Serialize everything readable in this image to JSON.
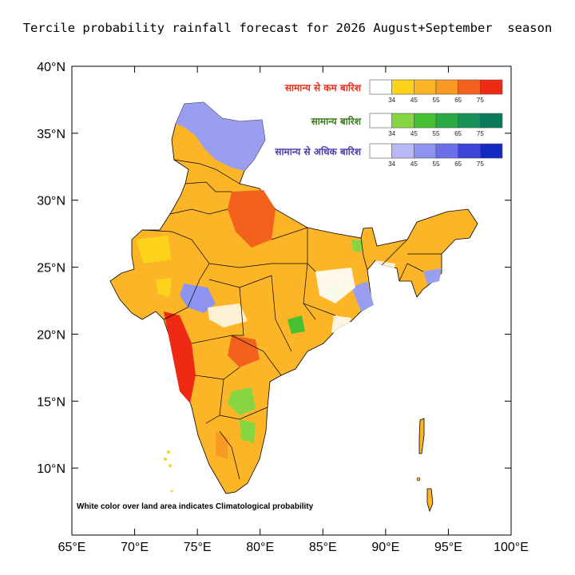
{
  "title": "Tercile probability rainfall forecast for 2026 August+September  season",
  "footnote": "White color over land area indicates Climatological probability",
  "map": {
    "lon_range": [
      65,
      100
    ],
    "lat_range": [
      5,
      40
    ],
    "x_ticks": [
      "65°E",
      "70°E",
      "75°E",
      "80°E",
      "85°E",
      "90°E",
      "95°E",
      "100°E"
    ],
    "y_ticks": [
      "40°N",
      "35°N",
      "30°N",
      "25°N",
      "20°N",
      "15°N",
      "10°N"
    ]
  },
  "legend": [
    {
      "title": "सामान्य से कम बारिश",
      "title_color": "#e8311f",
      "colors": [
        "#ffffff",
        "#fdd21a",
        "#fbb527",
        "#f99a22",
        "#f3621c",
        "#ee2a15"
      ],
      "ticks": [
        "34",
        "45",
        "55",
        "65",
        "75"
      ]
    },
    {
      "title": "सामान्य बारिश",
      "title_color": "#3d7a1e",
      "colors": [
        "#ffffff",
        "#86d642",
        "#46c031",
        "#2aa843",
        "#18905a",
        "#0a7a5a"
      ],
      "ticks": [
        "34",
        "45",
        "55",
        "65",
        "75"
      ]
    },
    {
      "title": "सामान्य से अधिक बारिश",
      "title_color": "#4b3fb0",
      "colors": [
        "#ffffff",
        "#b7b8f5",
        "#8e92f0",
        "#6a6fe8",
        "#3b46d8",
        "#1228c2"
      ],
      "ticks": [
        "34",
        "45",
        "55",
        "65",
        "75"
      ]
    }
  ]
}
